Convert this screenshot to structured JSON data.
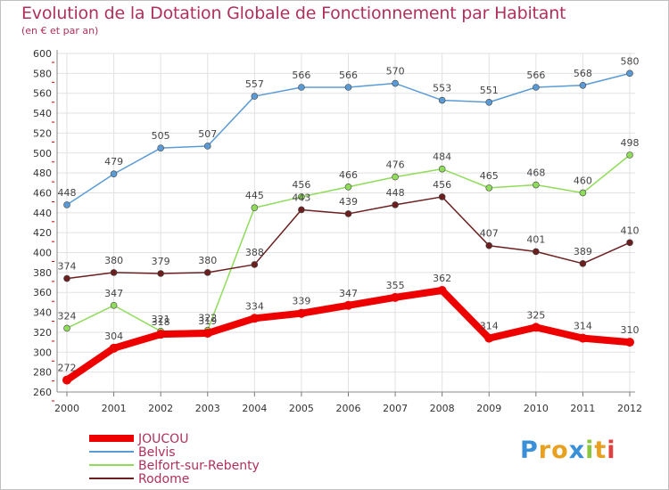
{
  "title": "Evolution de la Dotation Globale de Fonctionnement par Habitant",
  "subtitle": "(en € et par an)",
  "logo": {
    "letters": [
      "P",
      "r",
      "o",
      "x",
      "i",
      "t",
      "i"
    ],
    "colors": [
      "#3a8fd9",
      "#e8a020",
      "#e8a020",
      "#3a8fd9",
      "#8cc63f",
      "#e8a020",
      "#e04040"
    ]
  },
  "chart_data": {
    "type": "line",
    "x": [
      "2000",
      "2001",
      "2002",
      "2003",
      "2004",
      "2005",
      "2006",
      "2007",
      "2008",
      "2009",
      "2010",
      "2011",
      "2012"
    ],
    "ylim": [
      260,
      600
    ],
    "yticks": [
      260,
      280,
      300,
      320,
      340,
      360,
      380,
      400,
      420,
      440,
      460,
      480,
      500,
      520,
      540,
      560,
      580,
      600
    ],
    "grid": true,
    "legend": "bottom-left",
    "series": [
      {
        "name": "Belvis",
        "color": "#5b9bd5",
        "values": [
          448,
          479,
          505,
          507,
          557,
          566,
          566,
          570,
          553,
          551,
          566,
          568,
          580
        ]
      },
      {
        "name": "Belfort-sur-Rebenty",
        "color": "#8fdc5a",
        "values": [
          324,
          347,
          321,
          322,
          445,
          456,
          466,
          476,
          484,
          465,
          468,
          460,
          498
        ]
      },
      {
        "name": "Rodome",
        "color": "#6b1f1f",
        "values": [
          374,
          380,
          379,
          380,
          388,
          443,
          439,
          448,
          456,
          407,
          401,
          389,
          410
        ]
      },
      {
        "name": "JOUCOU",
        "color": "#ee0000",
        "values": [
          272,
          304,
          318,
          319,
          334,
          339,
          347,
          355,
          362,
          314,
          325,
          314,
          310
        ]
      }
    ]
  }
}
